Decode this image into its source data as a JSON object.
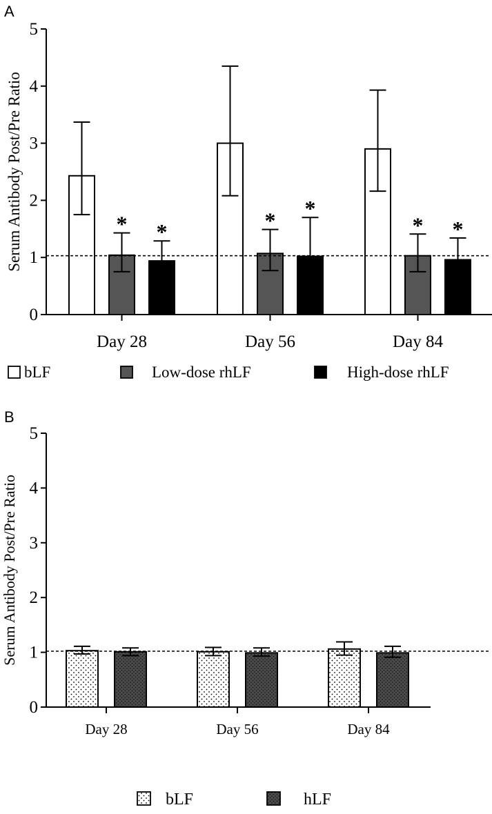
{
  "chart_data": [
    {
      "panel": "A",
      "type": "bar",
      "ylabel": "Serum Antibody  Post/Pre  Ratio",
      "ylim": [
        0,
        5
      ],
      "yticks": [
        "0",
        "1",
        "2",
        "3",
        "4",
        "5"
      ],
      "categories": [
        "Day 28",
        "Day 56",
        "Day 84"
      ],
      "reference_line": 1.03,
      "series": [
        {
          "name": "bLF",
          "fill": "#ffffff",
          "pattern": "none",
          "values": [
            2.43,
            3.0,
            2.9
          ],
          "err_low": [
            1.75,
            2.08,
            2.16
          ],
          "err_high": [
            3.37,
            4.35,
            3.93
          ],
          "markers": [
            "",
            "",
            ""
          ]
        },
        {
          "name": "Low-dose rhLF",
          "fill": "#555555",
          "pattern": "none",
          "values": [
            1.04,
            1.07,
            1.03
          ],
          "err_low": [
            0.75,
            0.77,
            0.75
          ],
          "err_high": [
            1.43,
            1.49,
            1.41
          ],
          "markers": [
            "*",
            "*",
            "*"
          ]
        },
        {
          "name": "High-dose rhLF",
          "fill": "#000000",
          "pattern": "none",
          "values": [
            0.94,
            1.02,
            0.96
          ],
          "err_low": [
            0.62,
            0.6,
            0.62
          ],
          "err_high": [
            1.29,
            1.7,
            1.34
          ],
          "markers": [
            "*",
            "*",
            "*"
          ]
        }
      ],
      "legend_position": "bottom"
    },
    {
      "panel": "B",
      "type": "bar",
      "ylabel": "Serum Antibody Post/Pre Ratio",
      "ylim": [
        0,
        5
      ],
      "yticks": [
        "0",
        "1",
        "2",
        "3",
        "4",
        "5"
      ],
      "categories": [
        "Day 28",
        "Day 56",
        "Day 84"
      ],
      "reference_line": 1.02,
      "series": [
        {
          "name": "bLF",
          "fill": "#ffffff",
          "pattern": "dots-sparse",
          "values": [
            1.03,
            1.01,
            1.06
          ],
          "err_low": [
            0.97,
            0.94,
            0.95
          ],
          "err_high": [
            1.11,
            1.09,
            1.19
          ],
          "markers": [
            "",
            "",
            ""
          ]
        },
        {
          "name": "hLF",
          "fill": "#4d4d4d",
          "pattern": "dots-dense",
          "values": [
            1.01,
            0.99,
            0.99
          ],
          "err_low": [
            0.94,
            0.93,
            0.91
          ],
          "err_high": [
            1.08,
            1.08,
            1.11
          ],
          "markers": [
            "",
            "",
            ""
          ]
        }
      ],
      "legend_position": "bottom"
    }
  ],
  "panel_labels": [
    "A",
    "B"
  ]
}
